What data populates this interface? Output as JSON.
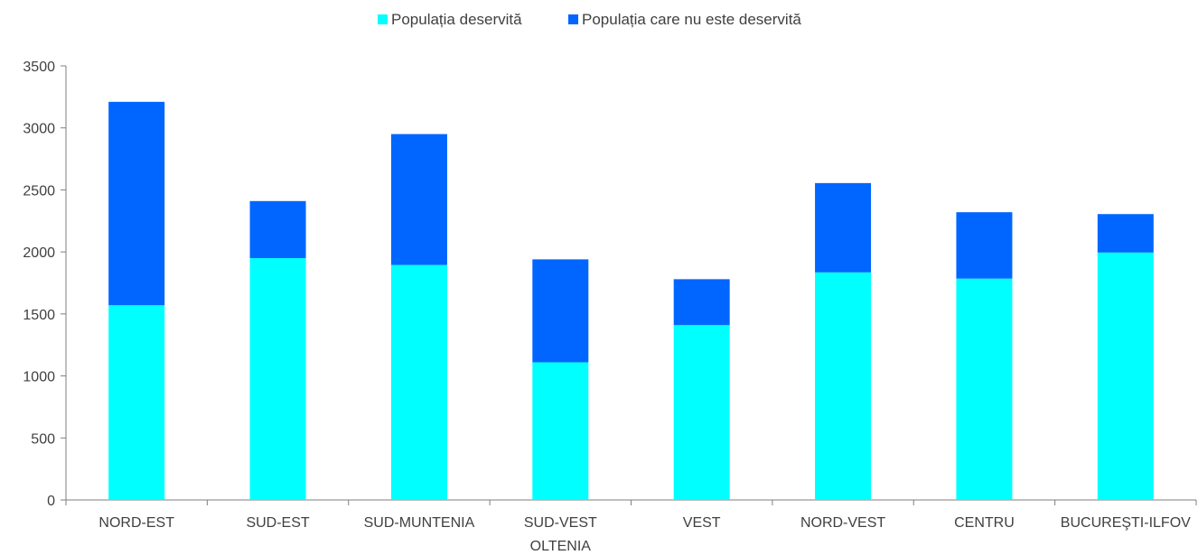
{
  "chart_data": {
    "type": "bar",
    "stacked": true,
    "categories": [
      "NORD-EST",
      "SUD-EST",
      "SUD-MUNTENIA",
      "SUD-VEST\nOLTENIA",
      "VEST",
      "NORD-VEST",
      "CENTRU",
      "BUCUREŞTI-ILFOV"
    ],
    "series": [
      {
        "name": "Populația deservită",
        "color": "#00FFFF",
        "values": [
          1570,
          1950,
          1895,
          1110,
          1410,
          1835,
          1785,
          1995
        ]
      },
      {
        "name": "Populația care nu este deservită",
        "color": "#0066FF",
        "values": [
          1640,
          460,
          1055,
          830,
          370,
          720,
          535,
          310
        ]
      }
    ],
    "ylim": [
      0,
      3500
    ],
    "yticks": [
      0,
      500,
      1000,
      1500,
      2000,
      2500,
      3000,
      3500
    ],
    "grid": false,
    "legend_position": "top",
    "title": "",
    "xlabel": "",
    "ylabel": ""
  }
}
